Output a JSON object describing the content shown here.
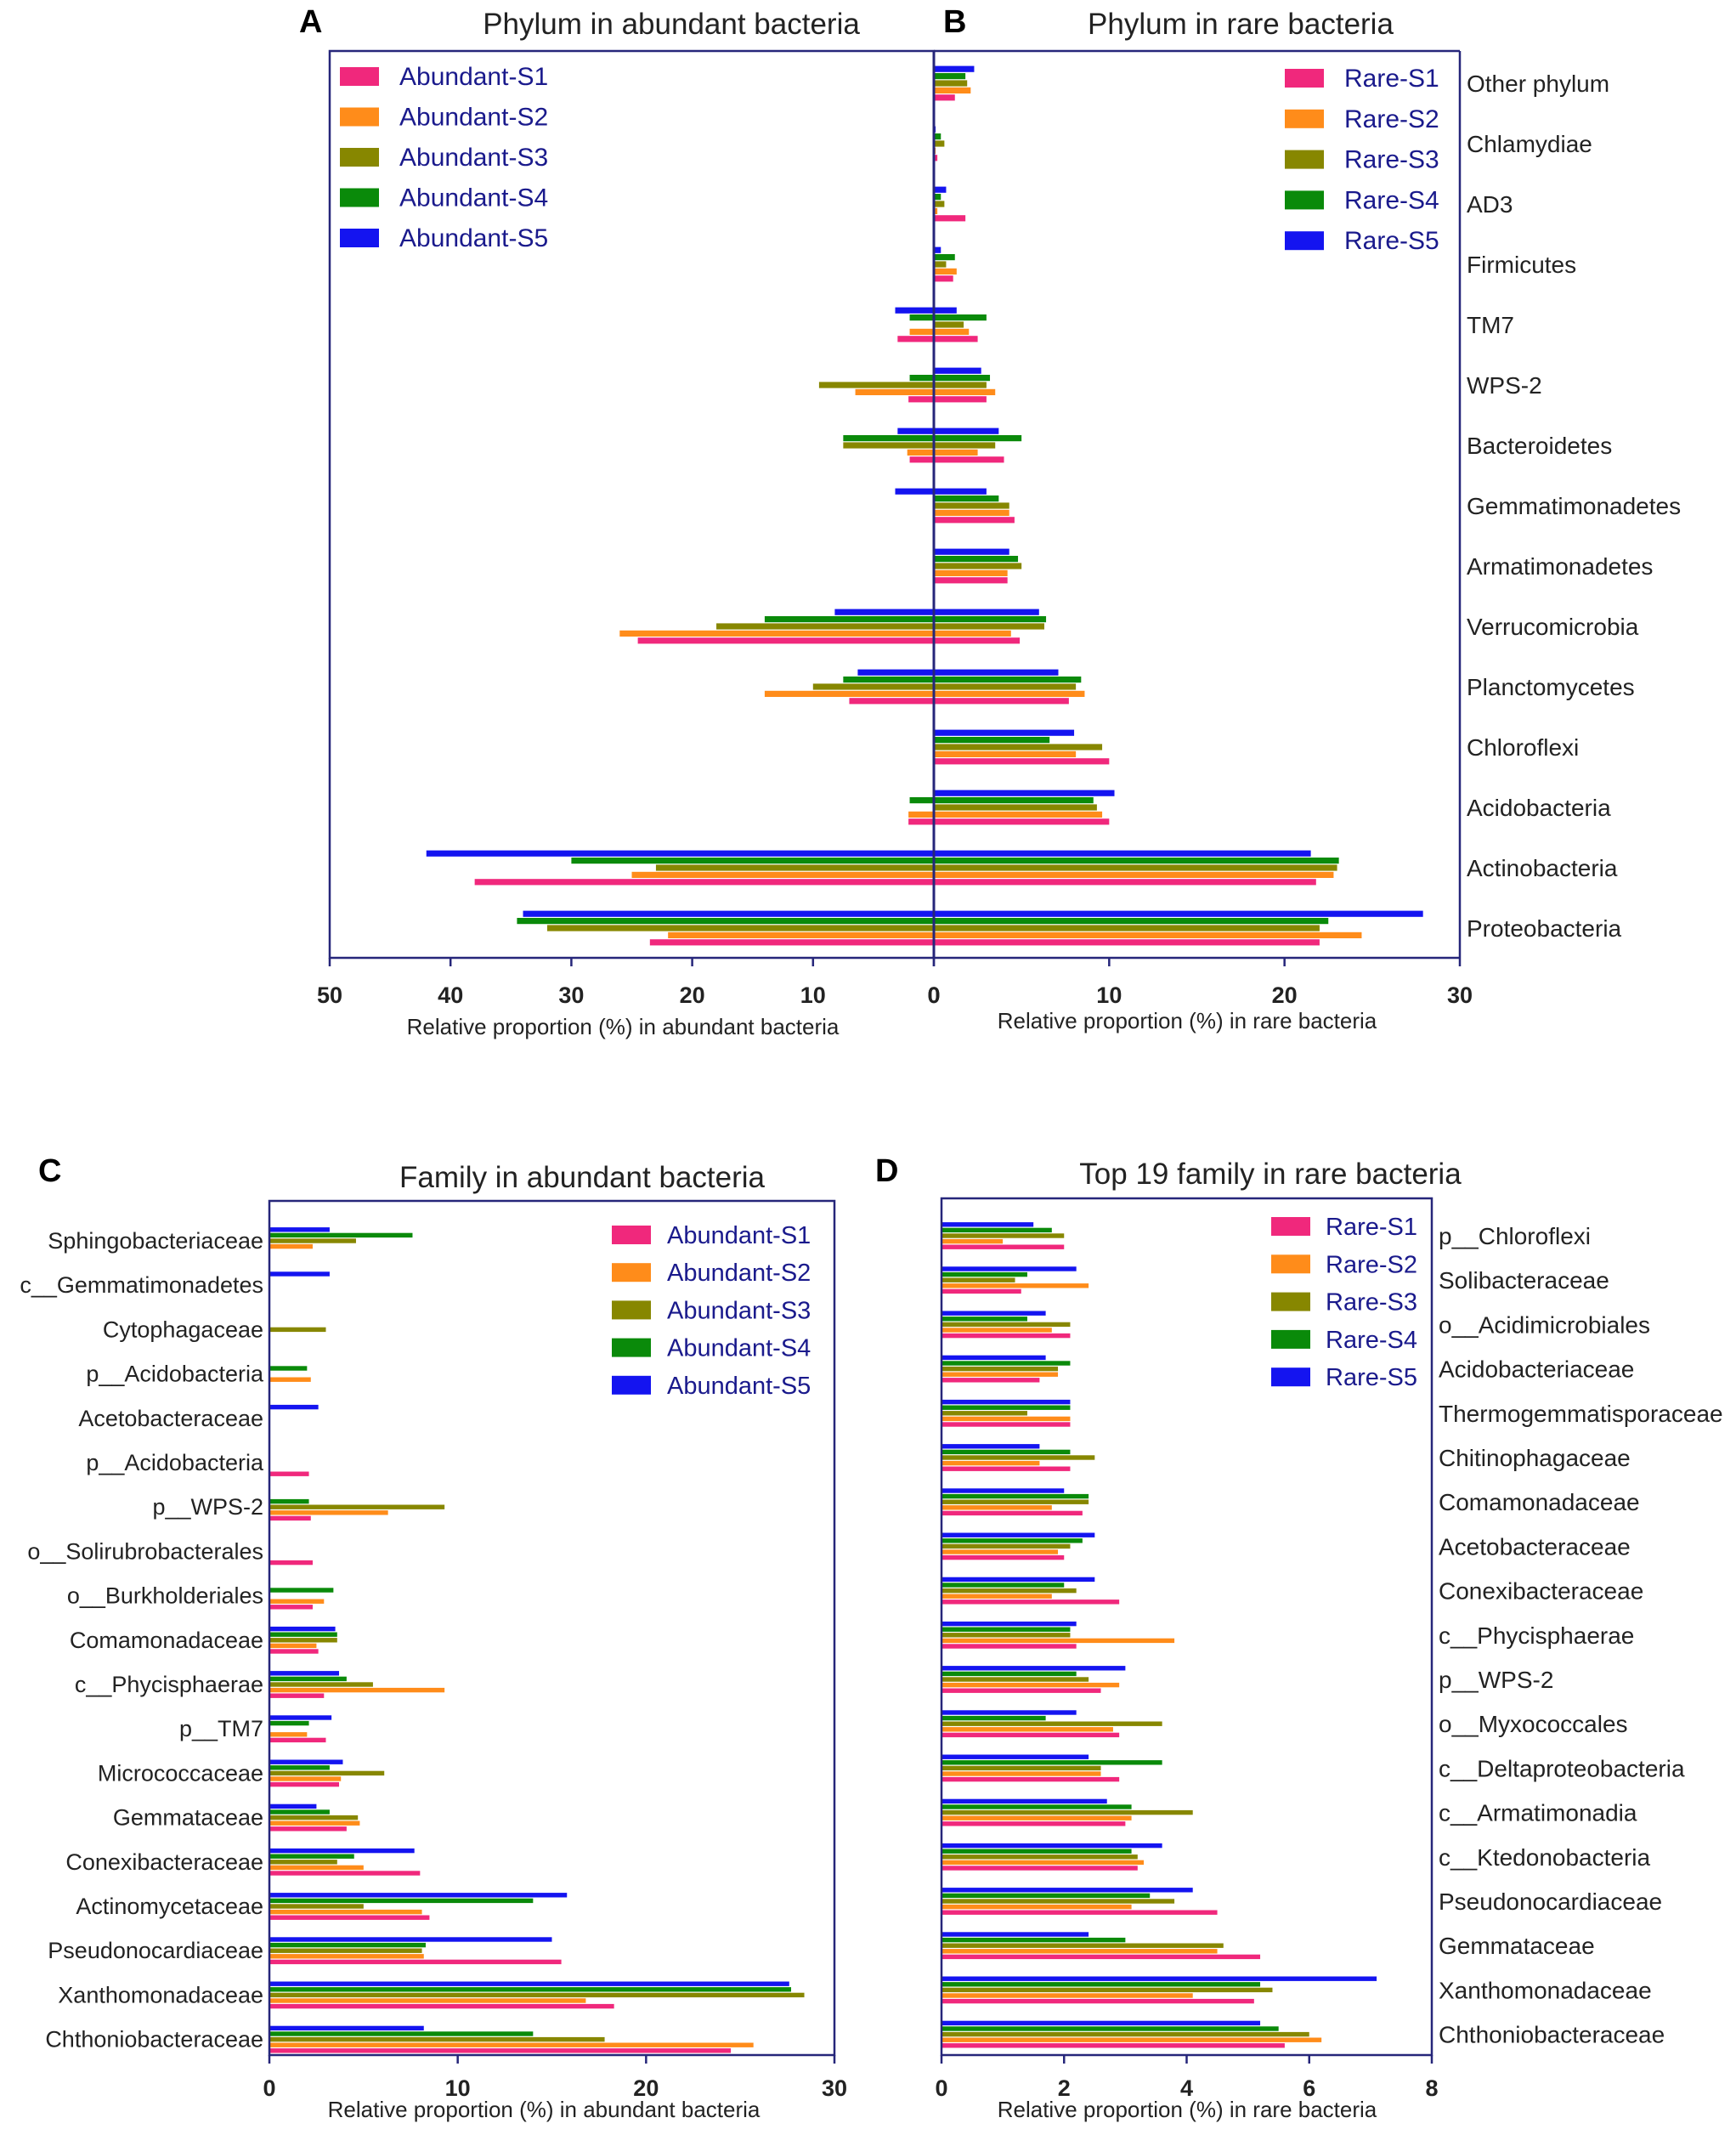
{
  "colors": {
    "S1": "#f0287c",
    "S2": "#ff8c1a",
    "S3": "#878700",
    "S4": "#0a8a0a",
    "S5": "#1414f0",
    "axis": "#26267a",
    "legend_text": "#1a1a8c",
    "text": "#222222"
  },
  "chart_data": [
    {
      "type": "bar",
      "panel_letter": "A",
      "title": "Phylum in abundant bacteria",
      "xlabel": "Relative proportion  (%) in abundant bacteria",
      "orientation": "horizontal",
      "x_direction": "reversed",
      "xlim": [
        0,
        50
      ],
      "xticks": [
        "50",
        "40",
        "30",
        "20",
        "10",
        "0"
      ],
      "legend_position": "top-left",
      "categories": [
        "Other phylum",
        "Chlamydiae",
        "AD3",
        "Firmicutes",
        "TM7",
        "WPS-2",
        "Bacteroidetes",
        "Gemmatimonadetes",
        "Armatimonadetes",
        "Verrucomicrobia",
        "Planctomycetes",
        "Chloroflexi",
        "Acidobacteria",
        "Actinobacteria",
        "Proteobacteria"
      ],
      "series": [
        {
          "name": "Abundant-S1",
          "values": [
            0,
            0,
            0,
            0,
            3.0,
            2.1,
            2.0,
            0,
            0,
            24.5,
            7.0,
            0,
            2.1,
            38.0,
            23.5
          ]
        },
        {
          "name": "Abundant-S2",
          "values": [
            0,
            0,
            0,
            0,
            2.0,
            6.5,
            2.2,
            0,
            0,
            26.0,
            14.0,
            0,
            2.1,
            25.0,
            22.0
          ]
        },
        {
          "name": "Abundant-S3",
          "values": [
            0,
            0,
            0,
            0,
            0,
            9.5,
            7.5,
            0,
            0,
            18.0,
            10.0,
            0,
            0,
            23.0,
            32.0
          ]
        },
        {
          "name": "Abundant-S4",
          "values": [
            0,
            0,
            0,
            0,
            2.0,
            2.0,
            7.5,
            0,
            0,
            14.0,
            7.5,
            0,
            2.0,
            30.0,
            34.5
          ]
        },
        {
          "name": "Abundant-S5",
          "values": [
            0,
            0,
            0,
            0,
            3.2,
            0,
            3.0,
            3.2,
            0,
            8.2,
            6.3,
            0,
            0,
            42.0,
            34.0
          ]
        }
      ]
    },
    {
      "type": "bar",
      "panel_letter": "B",
      "title": "Phylum in rare bacteria",
      "xlabel": "Relative proportion  (%) in rare bacteria",
      "orientation": "horizontal",
      "xlim": [
        0,
        30
      ],
      "xticks": [
        "0",
        "10",
        "20",
        "30"
      ],
      "legend_position": "top-right",
      "categories": [
        "Other phylum",
        "Chlamydiae",
        "AD3",
        "Firmicutes",
        "TM7",
        "WPS-2",
        "Bacteroidetes",
        "Gemmatimonadetes",
        "Armatimonadetes",
        "Verrucomicrobia",
        "Planctomycetes",
        "Chloroflexi",
        "Acidobacteria",
        "Actinobacteria",
        "Proteobacteria"
      ],
      "series": [
        {
          "name": "Rare-S1",
          "values": [
            1.2,
            0.2,
            1.8,
            1.1,
            2.5,
            3.0,
            4.0,
            4.6,
            4.2,
            4.9,
            7.7,
            10.0,
            10.0,
            21.8,
            22.0
          ]
        },
        {
          "name": "Rare-S2",
          "values": [
            2.1,
            0.1,
            0.2,
            1.3,
            2.0,
            3.5,
            2.5,
            4.3,
            4.2,
            4.4,
            8.6,
            8.1,
            9.6,
            22.8,
            24.4
          ]
        },
        {
          "name": "Rare-S3",
          "values": [
            1.9,
            0.6,
            0.6,
            0.7,
            1.7,
            3.0,
            3.5,
            4.3,
            5.0,
            6.3,
            8.1,
            9.6,
            9.3,
            23.0,
            22.0
          ]
        },
        {
          "name": "Rare-S4",
          "values": [
            1.8,
            0.4,
            0.4,
            1.2,
            3.0,
            3.2,
            5.0,
            3.7,
            4.8,
            6.4,
            8.4,
            6.6,
            9.1,
            23.1,
            22.5
          ]
        },
        {
          "name": "Rare-S5",
          "values": [
            2.3,
            0.1,
            0.7,
            0.4,
            1.3,
            2.7,
            3.7,
            3.0,
            4.3,
            6.0,
            7.1,
            8.0,
            10.3,
            21.5,
            27.9
          ]
        }
      ]
    },
    {
      "type": "bar",
      "panel_letter": "C",
      "title": "Family in abundant bacteria",
      "xlabel": "Relative proportion  (%) in abundant bacteria",
      "orientation": "horizontal",
      "xlim": [
        0,
        30
      ],
      "xticks": [
        "0",
        "10",
        "20",
        "30"
      ],
      "legend_position": "top-right",
      "categories": [
        "Sphingobacteriaceae",
        "c__Gemmatimonadetes",
        "Cytophagaceae",
        "p__Acidobacteria",
        "Acetobacteraceae",
        "p__Acidobacteria",
        "p__WPS-2",
        "o__Solirubrobacterales",
        "o__Burkholderiales",
        "Comamonadaceae",
        "c__Phycisphaerae",
        "p__TM7",
        "Micrococcaceae",
        "Gemmataceae",
        "Conexibacteraceae",
        "Actinomycetaceae",
        "Pseudonocardiaceae",
        "Xanthomonadaceae",
        "Chthoniobacteraceae"
      ],
      "series": [
        {
          "name": "Abundant-S1",
          "values": [
            0,
            0,
            0,
            0,
            0,
            2.1,
            2.2,
            2.3,
            2.3,
            2.6,
            2.9,
            3.0,
            3.7,
            4.1,
            8.0,
            8.5,
            15.5,
            18.3,
            24.5
          ]
        },
        {
          "name": "Abundant-S2",
          "values": [
            2.3,
            0,
            0,
            2.2,
            0,
            0,
            6.3,
            0,
            2.9,
            2.5,
            9.3,
            2.0,
            3.8,
            4.8,
            5.0,
            8.1,
            8.2,
            16.8,
            25.7
          ]
        },
        {
          "name": "Abundant-S3",
          "values": [
            4.6,
            0,
            3.0,
            0,
            0,
            0,
            9.3,
            0,
            0,
            3.6,
            5.5,
            0,
            6.1,
            4.7,
            3.6,
            5.0,
            8.1,
            28.4,
            17.8
          ]
        },
        {
          "name": "Abundant-S4",
          "values": [
            7.6,
            0,
            0,
            2.0,
            0,
            0,
            2.1,
            0,
            3.4,
            3.6,
            4.1,
            2.1,
            3.2,
            3.2,
            4.5,
            14.0,
            8.3,
            27.7,
            14.0
          ]
        },
        {
          "name": "Abundant-S5",
          "values": [
            3.2,
            3.2,
            0,
            0,
            2.6,
            0,
            0,
            0,
            0,
            3.5,
            3.7,
            3.3,
            3.9,
            2.5,
            7.7,
            15.8,
            15.0,
            27.6,
            8.2
          ]
        }
      ]
    },
    {
      "type": "bar",
      "panel_letter": "D",
      "title": "Top 19 family in rare bacteria",
      "xlabel": "Relative proportion  (%) in rare bacteria",
      "orientation": "horizontal",
      "xlim": [
        0,
        8
      ],
      "xticks": [
        "0",
        "2",
        "4",
        "6",
        "8"
      ],
      "legend_position": "top-right",
      "categories": [
        "p__Chloroflexi",
        "Solibacteraceae",
        "o__Acidimicrobiales",
        "Acidobacteriaceae",
        "Thermogemmatisporaceae",
        "Chitinophagaceae",
        "Comamonadaceae",
        "Acetobacteraceae",
        "Conexibacteraceae",
        "c__Phycisphaerae",
        "p__WPS-2",
        "o__Myxococcales",
        "c__Deltaproteobacteria",
        "c__Armatimonadia",
        "c__Ktedonobacteria",
        "Pseudonocardiaceae",
        "Gemmataceae",
        "Xanthomonadaceae",
        "Chthoniobacteraceae"
      ],
      "series": [
        {
          "name": "Rare-S1",
          "values": [
            2.0,
            1.3,
            2.1,
            1.6,
            2.1,
            2.1,
            2.3,
            2.0,
            2.9,
            2.2,
            2.6,
            2.9,
            2.9,
            3.0,
            3.2,
            4.5,
            5.2,
            5.1,
            5.6
          ]
        },
        {
          "name": "Rare-S2",
          "values": [
            1.0,
            2.4,
            1.8,
            1.9,
            2.1,
            1.6,
            1.8,
            1.9,
            1.8,
            3.8,
            2.9,
            2.8,
            2.6,
            3.1,
            3.3,
            3.1,
            4.5,
            4.1,
            6.2
          ]
        },
        {
          "name": "Rare-S3",
          "values": [
            2.0,
            1.2,
            2.1,
            1.9,
            1.4,
            2.5,
            2.4,
            2.1,
            2.2,
            2.1,
            2.4,
            3.6,
            2.6,
            4.1,
            3.2,
            3.8,
            4.6,
            5.4,
            6.0
          ]
        },
        {
          "name": "Rare-S4",
          "values": [
            1.8,
            1.4,
            1.4,
            2.1,
            2.1,
            2.1,
            2.4,
            2.3,
            2.0,
            2.1,
            2.2,
            1.7,
            3.6,
            3.1,
            3.1,
            3.4,
            3.0,
            5.2,
            5.5
          ]
        },
        {
          "name": "Rare-S5",
          "values": [
            1.5,
            2.2,
            1.7,
            1.7,
            2.1,
            1.6,
            2.0,
            2.5,
            2.5,
            2.2,
            3.0,
            2.2,
            2.4,
            2.7,
            3.6,
            4.1,
            2.4,
            7.1,
            5.2
          ]
        }
      ]
    }
  ]
}
